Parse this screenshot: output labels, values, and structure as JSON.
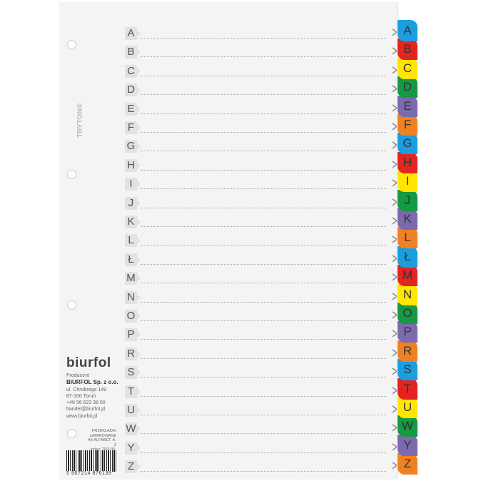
{
  "letters": [
    "A",
    "B",
    "C",
    "D",
    "E",
    "F",
    "G",
    "H",
    "I",
    "J",
    "K",
    "L",
    "Ł",
    "M",
    "N",
    "O",
    "P",
    "R",
    "S",
    "T",
    "U",
    "W",
    "Y",
    "Z"
  ],
  "tab_colors": [
    "#1a9ee0",
    "#e32421",
    "#ffe500",
    "#149a43",
    "#7b6aae",
    "#f08123"
  ],
  "chevron_icon": "chevron-right-icon",
  "brand_logo": "TRYTON®",
  "producer": {
    "logo": "biurfol",
    "label": "Producent",
    "company": "BIURFOL Sp. z o.o.",
    "street": "ul. Chrobrego 149",
    "city": "87-100 Toruń",
    "phone": "+48 56 623 38 00",
    "email": "handel@biurfol.pl",
    "web": "www.biurfol.pl"
  },
  "product": {
    "line1": "PRZEKŁADKI",
    "line2": "LAMINOWANE",
    "line3": "A4 ALFABET. A-Z",
    "index": "index: TRY-05-01"
  },
  "barcode": "5 907214 876139"
}
